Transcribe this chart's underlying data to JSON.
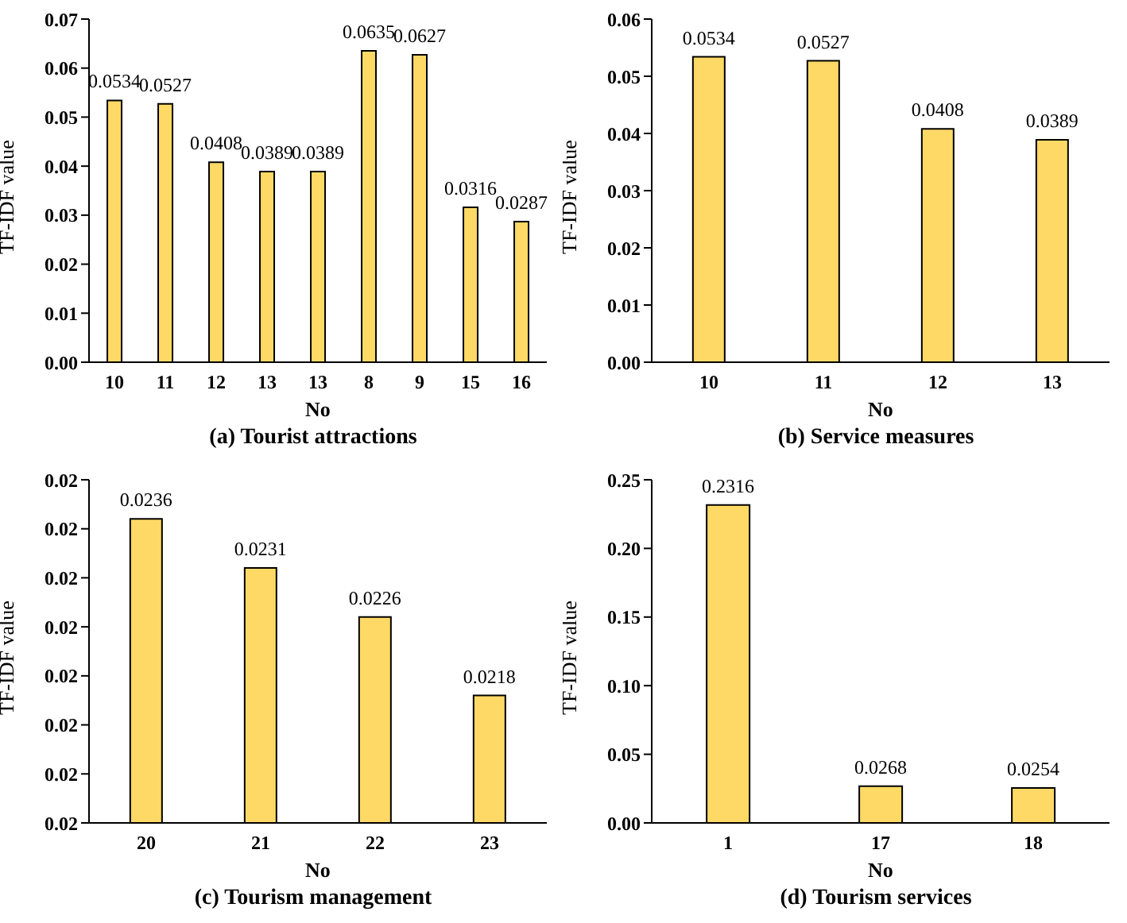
{
  "chart_data": [
    {
      "type": "bar",
      "title": "(a) Tourist attractions",
      "xlabel": "No",
      "ylabel": "TF-IDF value",
      "categories": [
        "10",
        "11",
        "12",
        "13",
        "13",
        "8",
        "9",
        "15",
        "16"
      ],
      "values": [
        0.0534,
        0.0527,
        0.0408,
        0.0389,
        0.0389,
        0.0635,
        0.0627,
        0.0316,
        0.0287
      ],
      "color": "#ffd966",
      "ylim": [
        0,
        0.07
      ],
      "yticks": [
        {
          "value": 0,
          "label": "0.00"
        },
        {
          "value": 0.01,
          "label": "0.01"
        },
        {
          "value": 0.02,
          "label": "0.02"
        },
        {
          "value": 0.03,
          "label": "0.03"
        },
        {
          "value": 0.04,
          "label": "0.04"
        },
        {
          "value": 0.05,
          "label": "0.05"
        },
        {
          "value": 0.06,
          "label": "0.06"
        },
        {
          "value": 0.07,
          "label": "0.07"
        }
      ],
      "data_labels": true,
      "grid": false,
      "legend": false
    },
    {
      "type": "bar",
      "title": "(b) Service measures",
      "xlabel": "No",
      "ylabel": "TF-IDF value",
      "categories": [
        "10",
        "11",
        "12",
        "13"
      ],
      "values": [
        0.0534,
        0.0527,
        0.0408,
        0.0389
      ],
      "color": "#ffd966",
      "ylim": [
        0,
        0.06
      ],
      "yticks": [
        {
          "value": 0,
          "label": "0.00"
        },
        {
          "value": 0.01,
          "label": "0.01"
        },
        {
          "value": 0.02,
          "label": "0.02"
        },
        {
          "value": 0.03,
          "label": "0.03"
        },
        {
          "value": 0.04,
          "label": "0.04"
        },
        {
          "value": 0.05,
          "label": "0.05"
        },
        {
          "value": 0.06,
          "label": "0.06"
        }
      ],
      "data_labels": true,
      "grid": false,
      "legend": false
    },
    {
      "type": "bar",
      "title": "(c) Tourism management",
      "xlabel": "No",
      "ylabel": "TF-IDF value",
      "categories": [
        "20",
        "21",
        "22",
        "23"
      ],
      "values": [
        0.0236,
        0.0231,
        0.0226,
        0.0218
      ],
      "color": "#ffd966",
      "ylim": [
        0.0205,
        0.024
      ],
      "yticks": [
        {
          "value": 0.0205,
          "label": "0.02"
        },
        {
          "value": 0.021,
          "label": "0.02"
        },
        {
          "value": 0.0215,
          "label": "0.02"
        },
        {
          "value": 0.022,
          "label": "0.02"
        },
        {
          "value": 0.0225,
          "label": "0.02"
        },
        {
          "value": 0.023,
          "label": "0.02"
        },
        {
          "value": 0.0235,
          "label": "0.02"
        },
        {
          "value": 0.024,
          "label": "0.02"
        }
      ],
      "data_labels": true,
      "grid": false,
      "legend": false
    },
    {
      "type": "bar",
      "title": "(d) Tourism services",
      "xlabel": "No",
      "ylabel": "TF-IDF value",
      "categories": [
        "1",
        "17",
        "18"
      ],
      "values": [
        0.2316,
        0.0268,
        0.0254
      ],
      "color": "#ffd966",
      "ylim": [
        0,
        0.25
      ],
      "yticks": [
        {
          "value": 0,
          "label": "0.00"
        },
        {
          "value": 0.05,
          "label": "0.05"
        },
        {
          "value": 0.1,
          "label": "0.10"
        },
        {
          "value": 0.15,
          "label": "0.15"
        },
        {
          "value": 0.2,
          "label": "0.20"
        },
        {
          "value": 0.25,
          "label": "0.25"
        }
      ],
      "data_labels": true,
      "grid": false,
      "legend": false
    }
  ]
}
